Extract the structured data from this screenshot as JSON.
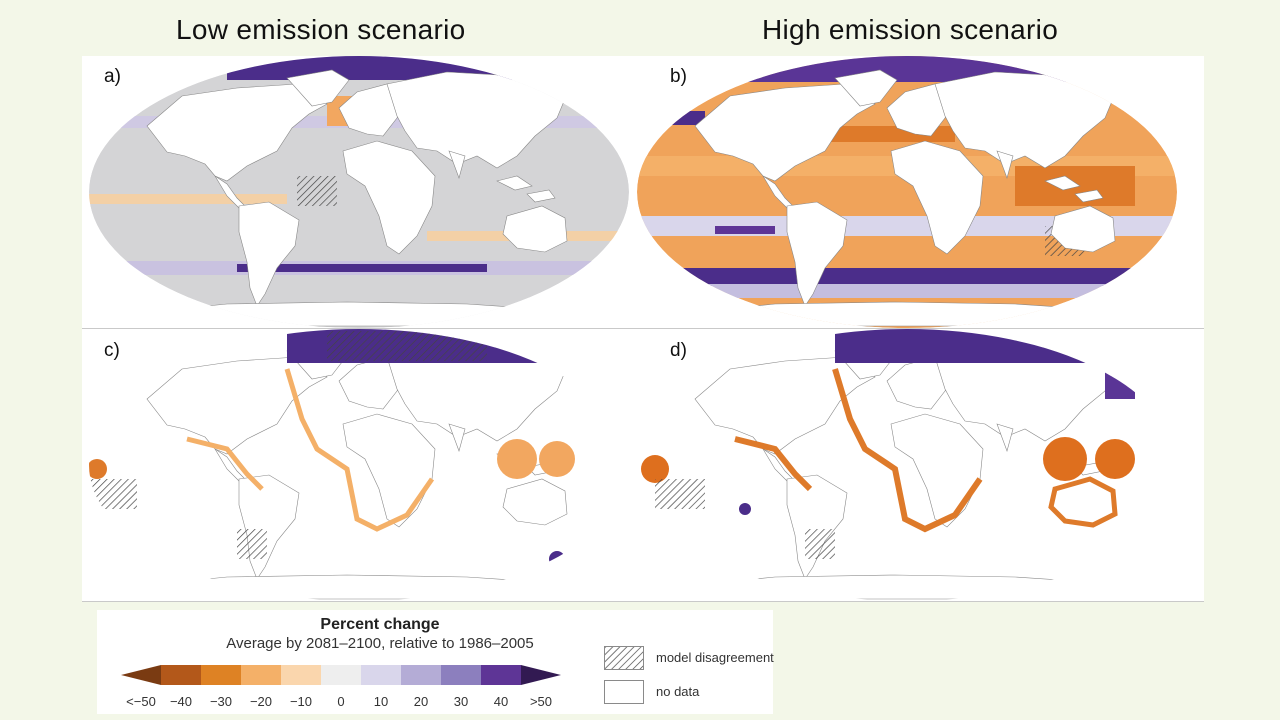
{
  "columns": {
    "left_title": "Low emission scenario",
    "right_title": "High emission scenario"
  },
  "panels": [
    {
      "label": "a)",
      "scenario": "low",
      "variable": "open-ocean"
    },
    {
      "label": "b)",
      "scenario": "high",
      "variable": "open-ocean"
    },
    {
      "label": "c)",
      "scenario": "low",
      "variable": "coastal"
    },
    {
      "label": "d)",
      "scenario": "high",
      "variable": "coastal"
    }
  ],
  "legend": {
    "title": "Percent change",
    "subtitle": "Average by 2081–2100, relative to 1986–2005",
    "ticks": [
      "<−50",
      "−40",
      "−30",
      "−20",
      "−10",
      "0",
      "10",
      "20",
      "30",
      "40",
      ">50"
    ],
    "colors": [
      "#7a3b12",
      "#b3581a",
      "#de8224",
      "#f4b068",
      "#fad6ad",
      "#eeeeee",
      "#d9d6eb",
      "#b4acd6",
      "#8c7fbe",
      "#5e3596",
      "#321a52"
    ],
    "key_hatch": "model disagreement",
    "key_nodata": "no data"
  },
  "palette": {
    "background": "#f3f7e8",
    "ocean_grey": "#d4d4d6",
    "land": "#ffffff",
    "orange": "#f0a35a",
    "deep_orange": "#de7a2a",
    "purple": "#5a3a9a",
    "lavender": "#c4bedf"
  }
}
